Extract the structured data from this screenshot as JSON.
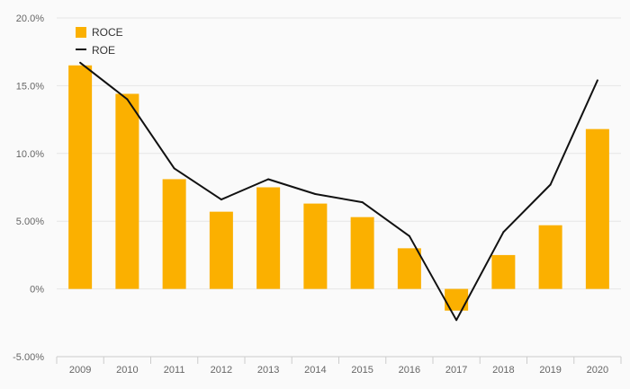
{
  "chart_data": {
    "type": "bar",
    "categories": [
      "2009",
      "2010",
      "2011",
      "2012",
      "2013",
      "2014",
      "2015",
      "2016",
      "2017",
      "2018",
      "2019",
      "2020"
    ],
    "y_tick_labels": [
      "20.0%",
      "15.0%",
      "10.0%",
      "5.00%",
      "0%",
      "-5.00%"
    ],
    "y_tick_values": [
      20,
      15,
      10,
      5,
      0,
      -5
    ],
    "ylim": [
      -5,
      20
    ],
    "grid": true,
    "legend_position": "top-left",
    "series": [
      {
        "name": "ROCE",
        "type": "bar",
        "color": "#fbb000",
        "values": [
          16.5,
          14.4,
          8.1,
          5.7,
          7.5,
          6.3,
          5.3,
          3.0,
          -1.6,
          2.5,
          4.7,
          11.8
        ]
      },
      {
        "name": "ROE",
        "type": "line",
        "color": "#111111",
        "values": [
          16.7,
          14.0,
          8.9,
          6.6,
          8.1,
          7.0,
          6.4,
          3.9,
          -2.3,
          4.2,
          7.7,
          15.4
        ]
      }
    ]
  }
}
